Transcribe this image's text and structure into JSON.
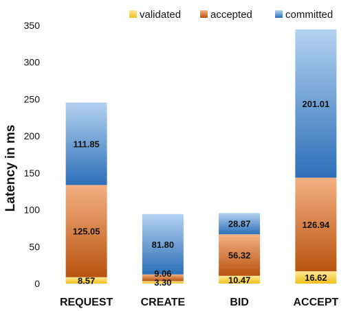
{
  "chart_data": {
    "type": "bar",
    "stacked": true,
    "title": "",
    "xlabel": "",
    "ylabel": "Latency in ms",
    "ylim": [
      0,
      350
    ],
    "yticks": [
      0,
      50,
      100,
      150,
      200,
      250,
      300,
      350
    ],
    "grid": false,
    "legend_position": "top",
    "categories": [
      "REQUEST",
      "CREATE",
      "BID",
      "ACCEPT"
    ],
    "series": [
      {
        "name": "validated",
        "values": [
          8.57,
          3.3,
          10.47,
          16.62
        ],
        "labels": [
          "8.57",
          "3.30",
          "10.47",
          "16.62"
        ],
        "color_light": "#ffe89a",
        "color_dark": "#f2c01a",
        "legend_color": "#f5cc3c"
      },
      {
        "name": "accepted",
        "values": [
          125.05,
          9.06,
          56.32,
          126.94
        ],
        "labels": [
          "125.05",
          "9.06",
          "56.32",
          "126.94"
        ],
        "color_light": "#f4b183",
        "color_dark": "#b8530f",
        "legend_color": "#dd7a32"
      },
      {
        "name": "committed",
        "values": [
          111.85,
          81.8,
          28.87,
          201.01
        ],
        "labels": [
          "111.85",
          "81.80",
          "28.87",
          "201.01"
        ],
        "color_light": "#b4d2f0",
        "color_dark": "#2c6fb8",
        "legend_color": "#3a7cc8"
      }
    ]
  }
}
